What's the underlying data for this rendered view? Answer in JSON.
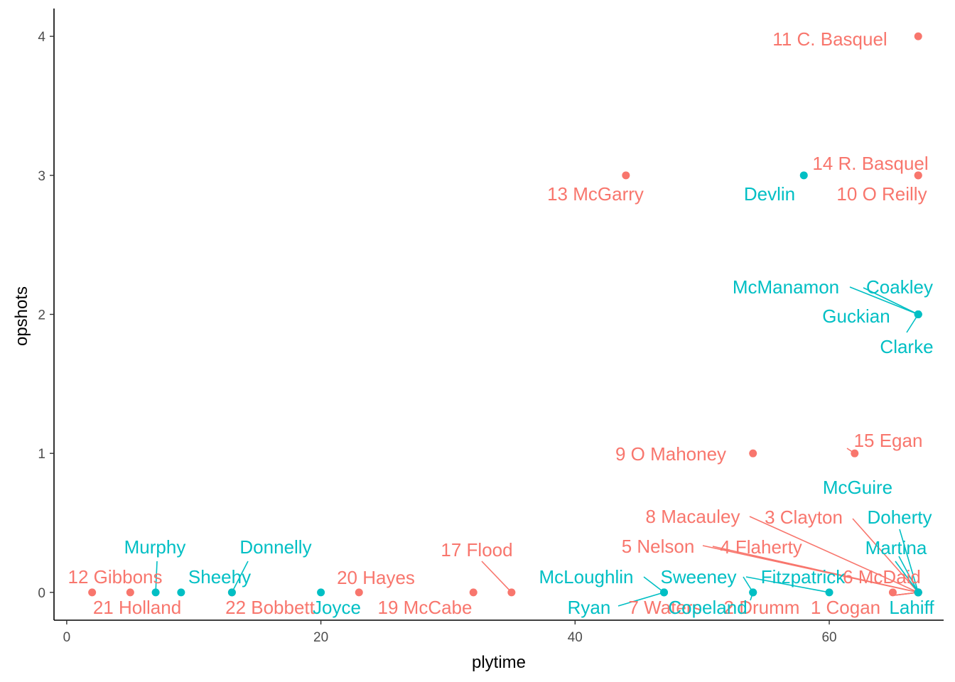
{
  "colors": {
    "teamA": "#F8766D",
    "teamB": "#00BFC4",
    "axis": "#000000",
    "tickText": "#4d4d4d"
  },
  "chart_data": {
    "type": "scatter",
    "title": "",
    "xlabel": "plytime",
    "ylabel": "opshots",
    "xlim": [
      -1,
      69
    ],
    "ylim": [
      -0.2,
      4.2
    ],
    "xticks": [
      0,
      20,
      40,
      60
    ],
    "yticks": [
      0,
      1,
      2,
      3,
      4
    ],
    "grid": false,
    "legend": "none",
    "points": [
      {
        "label": "11 C. Basquel",
        "x": 67,
        "y": 4,
        "group": "teamA"
      },
      {
        "label": "14 R. Basquel",
        "x": 67,
        "y": 3,
        "group": "teamA"
      },
      {
        "label": "10  O Reilly",
        "x": 67,
        "y": 3,
        "group": "teamA"
      },
      {
        "label": "13 McGarry",
        "x": 44,
        "y": 3,
        "group": "teamA"
      },
      {
        "label": "9 O Mahoney",
        "x": 54,
        "y": 1,
        "group": "teamA"
      },
      {
        "label": "15 Egan",
        "x": 62,
        "y": 1,
        "group": "teamA"
      },
      {
        "label": "8 Macauley",
        "x": 67,
        "y": 0,
        "group": "teamA"
      },
      {
        "label": "3 Clayton",
        "x": 67,
        "y": 0,
        "group": "teamA"
      },
      {
        "label": "5 Nelson",
        "x": 67,
        "y": 0,
        "group": "teamA"
      },
      {
        "label": "4 Flaherty",
        "x": 67,
        "y": 0,
        "group": "teamA"
      },
      {
        "label": "6 McDaid",
        "x": 65,
        "y": 0,
        "group": "teamA"
      },
      {
        "label": "7 Waters",
        "x": 67,
        "y": 0,
        "group": "teamA"
      },
      {
        "label": "2 Drumm",
        "x": 67,
        "y": 0,
        "group": "teamA"
      },
      {
        "label": "1 Cogan",
        "x": 67,
        "y": 0,
        "group": "teamA"
      },
      {
        "label": "12 Gibbons",
        "x": 5,
        "y": 0,
        "group": "teamA"
      },
      {
        "label": "21 Holland",
        "x": 2,
        "y": 0,
        "group": "teamA"
      },
      {
        "label": "22 Bobbett",
        "x": 13,
        "y": 0,
        "group": "teamA"
      },
      {
        "label": "20 Hayes",
        "x": 23,
        "y": 0,
        "group": "teamA"
      },
      {
        "label": "19 McCabe",
        "x": 32,
        "y": 0,
        "group": "teamA"
      },
      {
        "label": "17 Flood",
        "x": 35,
        "y": 0,
        "group": "teamA"
      },
      {
        "label": "Devlin",
        "x": 58,
        "y": 3,
        "group": "teamB"
      },
      {
        "label": "McManamon",
        "x": 67,
        "y": 2,
        "group": "teamB"
      },
      {
        "label": "Coakley",
        "x": 67,
        "y": 2,
        "group": "teamB"
      },
      {
        "label": "Guckian",
        "x": 67,
        "y": 2,
        "group": "teamB"
      },
      {
        "label": "Clarke",
        "x": 67,
        "y": 2,
        "group": "teamB"
      },
      {
        "label": "McGuire",
        "x": 67,
        "y": 0,
        "group": "teamB"
      },
      {
        "label": "Doherty",
        "x": 67,
        "y": 0,
        "group": "teamB"
      },
      {
        "label": "Martina",
        "x": 67,
        "y": 0,
        "group": "teamB"
      },
      {
        "label": "Lahiff",
        "x": 67,
        "y": 0,
        "group": "teamB"
      },
      {
        "label": "Fitzpatrick",
        "x": 60,
        "y": 0,
        "group": "teamB"
      },
      {
        "label": "Sweeney",
        "x": 54,
        "y": 0,
        "group": "teamB"
      },
      {
        "label": "McLoughlin",
        "x": 47,
        "y": 0,
        "group": "teamB"
      },
      {
        "label": "Ryan",
        "x": 47,
        "y": 0,
        "group": "teamB"
      },
      {
        "label": "Copeland",
        "x": 54,
        "y": 0,
        "group": "teamB"
      },
      {
        "label": "Murphy",
        "x": 7,
        "y": 0,
        "group": "teamB"
      },
      {
        "label": "Sheehy",
        "x": 9,
        "y": 0,
        "group": "teamB"
      },
      {
        "label": "Donnelly",
        "x": 13,
        "y": 0,
        "group": "teamB"
      },
      {
        "label": "Joyce",
        "x": 20,
        "y": 0,
        "group": "teamB"
      }
    ]
  }
}
